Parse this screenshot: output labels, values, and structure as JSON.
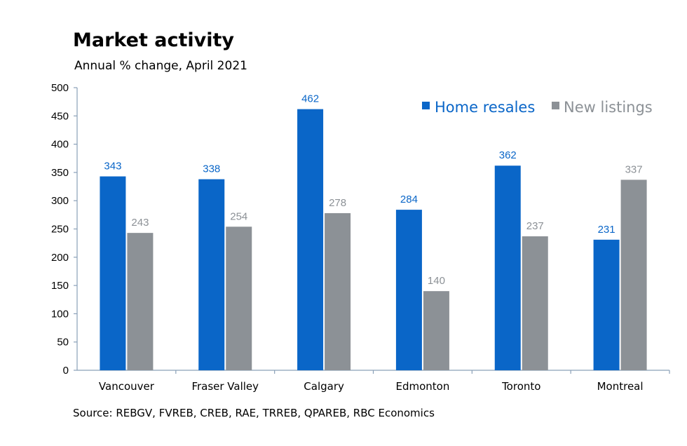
{
  "title": "Market activity",
  "subtitle": "Annual % change, April 2021",
  "source": "Source: REBGV, FVREB, CREB, RAE, TRREB, QPAREB, RBC Economics",
  "colors": {
    "home_resales": "#0a66c8",
    "new_listings": "#8c9196",
    "axis": "#8aa0b8"
  },
  "chart_data": {
    "type": "bar",
    "categories": [
      "Vancouver",
      "Fraser Valley",
      "Calgary",
      "Edmonton",
      "Toronto",
      "Montreal"
    ],
    "series": [
      {
        "name": "Home resales",
        "values": [
          343,
          338,
          462,
          284,
          362,
          231
        ]
      },
      {
        "name": "New listings",
        "values": [
          243,
          254,
          278,
          140,
          237,
          337
        ]
      }
    ],
    "ylim": [
      0,
      500
    ],
    "yticks": [
      "0",
      "50",
      "100",
      "150",
      "200",
      "250",
      "300",
      "350",
      "400",
      "450",
      "500"
    ],
    "xlabel": "",
    "ylabel": "",
    "grid": false,
    "legend": "top-right"
  }
}
